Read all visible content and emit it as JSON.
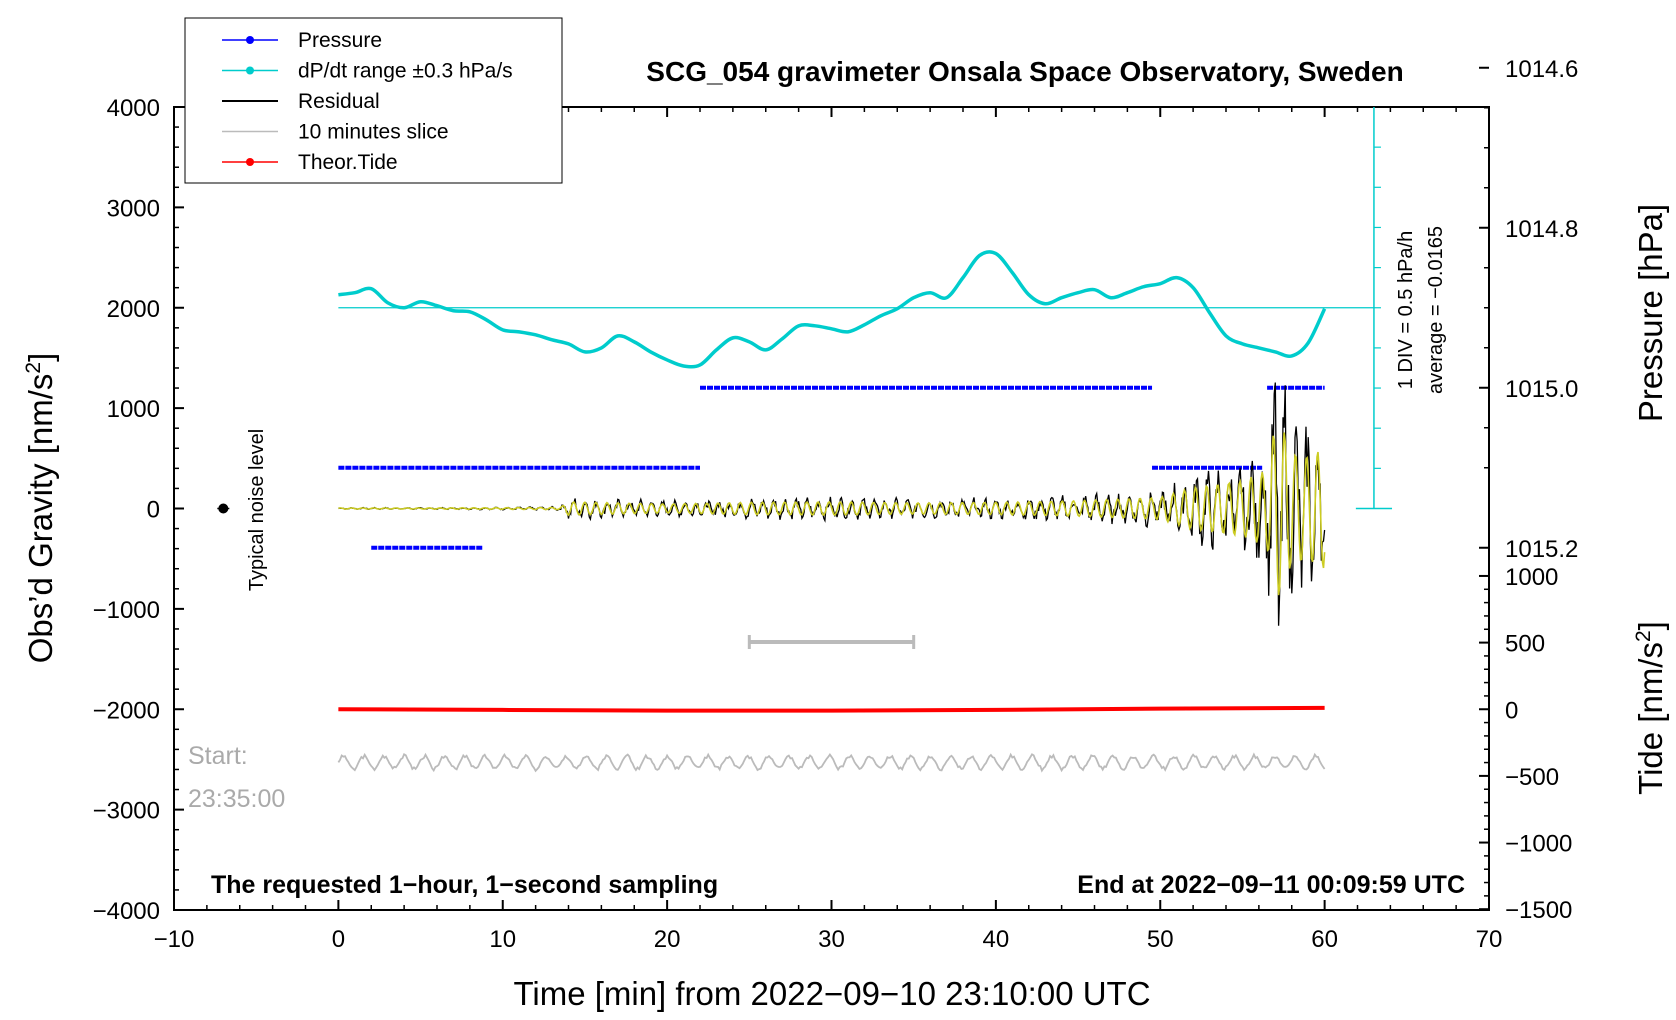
{
  "chart_data": {
    "type": "line",
    "title": "SCG_054 gravimeter Onsala Space Observatory, Sweden",
    "xlabel": "Time [min] from 2022−09−10 23:10:00 UTC",
    "ylabel_left": "Obs’d Gravity [nm/s",
    "ylabel_left_sup": "2",
    "ylabel_left_end": "]",
    "ylabel_right_top": "Pressure [hPa]",
    "ylabel_right_bottom": "Tide [nm/s",
    "ylabel_right_bottom_sup": "2",
    "ylabel_right_bottom_end": "]",
    "xlim": [
      -10,
      70
    ],
    "ylim_left": [
      -4000,
      4000
    ],
    "x_ticks": [
      "−10",
      "0",
      "10",
      "20",
      "30",
      "40",
      "50",
      "60",
      "70"
    ],
    "y_ticks_left": [
      "4000",
      "3000",
      "2000",
      "1000",
      "0",
      "−1000",
      "−2000",
      "−3000",
      "−4000"
    ],
    "pressure_ticks": [
      "1015.2",
      "1015.0",
      "1014.8",
      "1014.6"
    ],
    "tide_ticks": [
      "1000",
      "500",
      "0",
      "−500",
      "−1000",
      "−1500"
    ],
    "legend": [
      {
        "label": "Pressure",
        "color": "#0000ff"
      },
      {
        "label": "dP/dt range ±0.3 hPa/s",
        "color": "#00cccc"
      },
      {
        "label": "Residual",
        "color": "#000000"
      },
      {
        "label": "10 minutes slice",
        "color": "#bbbbbb"
      },
      {
        "label": "Theor.Tide",
        "color": "#ff0000"
      }
    ],
    "annotations": {
      "noise": "Typical noise level",
      "div": "1 DIV = 0.5 hPa/h",
      "average": "average = −0.0165",
      "start_label": "Start:",
      "start_time": "23:35:00",
      "bottom_left": "The requested 1−hour, 1−second sampling",
      "bottom_right": "End at 2022−09−11 00:09:59 UTC"
    },
    "series": [
      {
        "name": "Pressure",
        "unit": "hPa",
        "segments": [
          {
            "x0": 2.0,
            "x1": 8.8,
            "value": 1015.2
          },
          {
            "x0": 0.0,
            "x1": 22.0,
            "value": 1015.1
          },
          {
            "x0": 49.5,
            "x1": 56.2,
            "value": 1015.1
          },
          {
            "x0": 22.0,
            "x1": 49.5,
            "value": 1015.0
          },
          {
            "x0": 56.5,
            "x1": 60.0,
            "value": 1015.0
          }
        ]
      },
      {
        "name": "dP/dt",
        "unit": "nm/s2 scale",
        "x": [
          0,
          1,
          2,
          3,
          4,
          5,
          6,
          7,
          8,
          9,
          10,
          11,
          12,
          13,
          14,
          15,
          16,
          17,
          18,
          19,
          20,
          21,
          22,
          23,
          24,
          25,
          26,
          27,
          28,
          29,
          30,
          31,
          32,
          33,
          34,
          35,
          36,
          37,
          38,
          39,
          40,
          41,
          42,
          43,
          44,
          45,
          46,
          47,
          48,
          49,
          50,
          51,
          52,
          53,
          54,
          55,
          56,
          57,
          58,
          59,
          60
        ],
        "values": [
          2130,
          2150,
          2190,
          2050,
          2000,
          2060,
          2020,
          1970,
          1960,
          1880,
          1780,
          1760,
          1730,
          1680,
          1640,
          1560,
          1600,
          1720,
          1660,
          1560,
          1480,
          1420,
          1430,
          1580,
          1700,
          1660,
          1580,
          1690,
          1820,
          1820,
          1790,
          1760,
          1830,
          1920,
          1990,
          2100,
          2150,
          2100,
          2300,
          2520,
          2540,
          2350,
          2130,
          2040,
          2100,
          2150,
          2180,
          2100,
          2150,
          2210,
          2240,
          2300,
          2200,
          1950,
          1720,
          1640,
          1600,
          1560,
          1520,
          1650,
          1990
        ]
      },
      {
        "name": "Residual",
        "unit": "nm/s2",
        "x": [
          0,
          5,
          10,
          13.5,
          14,
          20,
          25,
          30,
          35,
          40,
          45,
          50,
          52,
          55,
          56.5,
          57,
          57.3,
          58,
          59,
          60
        ],
        "envelope": [
          10,
          10,
          15,
          20,
          120,
          80,
          110,
          120,
          100,
          110,
          140,
          200,
          380,
          500,
          700,
          1550,
          1600,
          1000,
          950,
          1100
        ]
      },
      {
        "name": "Theor.Tide",
        "unit": "nm/s2",
        "x": [
          0,
          10,
          20,
          30,
          40,
          50,
          60
        ],
        "values": [
          0,
          -5,
          -10,
          -10,
          -5,
          5,
          10
        ]
      }
    ],
    "slice_bar": {
      "x0": 25,
      "x1": 35,
      "y": -1330
    },
    "noise_point": {
      "x": -7,
      "y": 0
    }
  }
}
